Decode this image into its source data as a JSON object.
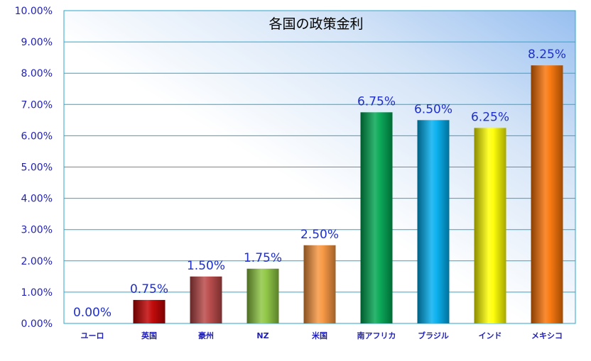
{
  "chart_data": {
    "type": "bar",
    "title": "各国の政策金利",
    "categories": [
      "ユーロ",
      "英国",
      "豪州",
      "NZ",
      "米国",
      "南アフリカ",
      "ブラジル",
      "インド",
      "メキシコ"
    ],
    "values": [
      0.0,
      0.75,
      1.5,
      1.75,
      2.5,
      6.75,
      6.5,
      6.25,
      8.25
    ],
    "value_labels": [
      "0.00%",
      "0.75%",
      "1.50%",
      "1.75%",
      "2.50%",
      "6.75%",
      "6.50%",
      "6.25%",
      "8.25%"
    ],
    "y_ticks": [
      "0.00%",
      "1.00%",
      "2.00%",
      "3.00%",
      "4.00%",
      "5.00%",
      "6.00%",
      "7.00%",
      "8.00%",
      "9.00%",
      "10.00%"
    ],
    "ylim": [
      0,
      10
    ],
    "grid": true,
    "legend": "none",
    "colors": [
      "#c00000",
      "#c00000",
      "#b84646",
      "#8cc63f",
      "#f7953d",
      "#00a651",
      "#00aeef",
      "#ffff00",
      "#f97306"
    ],
    "label_color": "#1f2fc8",
    "axis_text_color": "#1f1fb4",
    "grid_color": "#2aa6cc"
  }
}
